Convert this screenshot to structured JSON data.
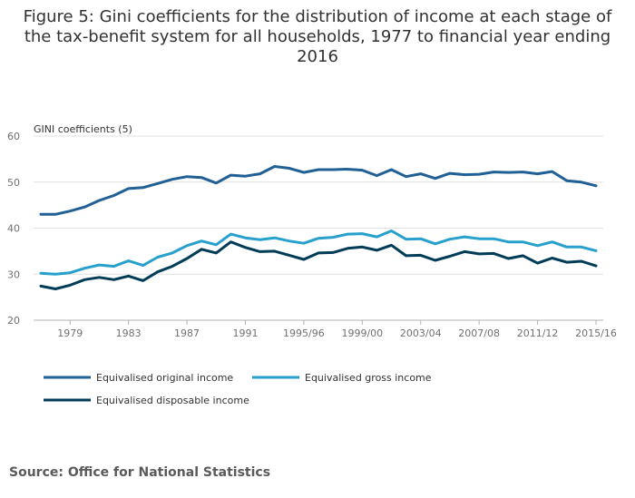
{
  "title": "Figure 5: Gini coefficients for the distribution of income at each stage of the tax-benefit system for all households, 1977 to financial year ending 2016",
  "source": "Source: Office for National Statistics",
  "colors": {
    "original": "#206095",
    "gross": "#27a0cc",
    "disposable": "#003c57",
    "grid": "#e0e0e0",
    "axis": "#b3b3b3"
  },
  "chart_data": {
    "type": "line",
    "title": "",
    "xlabel": "",
    "ylabel": "GINI coefficients (5)",
    "ylim": [
      20,
      60
    ],
    "yticks": [
      20,
      30,
      40,
      50,
      60
    ],
    "grid": true,
    "legend_position": "bottom",
    "x": [
      "1977",
      "1978",
      "1979",
      "1980",
      "1981",
      "1982",
      "1983",
      "1984",
      "1985",
      "1986",
      "1987",
      "1988",
      "1989",
      "1990",
      "1991",
      "1992",
      "1993",
      "1994",
      "1995/96",
      "1996/97",
      "1997/98",
      "1998/99",
      "1999/00",
      "2000/01",
      "2001/02",
      "2002/03",
      "2003/04",
      "2004/05",
      "2005/06",
      "2006/07",
      "2007/08",
      "2008/09",
      "2009/10",
      "2010/11",
      "2011/12",
      "2012/13",
      "2013/14",
      "2014/15",
      "2015/16"
    ],
    "xtick_labels": [
      "1979",
      "1983",
      "1987",
      "1991",
      "1995/96",
      "1999/00",
      "2003/04",
      "2007/08",
      "2011/12",
      "2015/16"
    ],
    "series": [
      {
        "name": "Equivalised original income",
        "color": "#206095",
        "values": [
          43,
          43,
          43.7,
          44.6,
          46,
          47.1,
          48.6,
          48.8,
          49.7,
          50.6,
          51.2,
          51,
          49.8,
          51.5,
          51.3,
          51.8,
          53.4,
          53,
          52.1,
          52.7,
          52.7,
          52.8,
          52.6,
          51.4,
          52.7,
          51.2,
          51.8,
          50.8,
          51.9,
          51.6,
          51.7,
          52.2,
          52.1,
          52.2,
          51.8,
          52.3,
          50.3,
          50,
          49.2
        ]
      },
      {
        "name": "Equivalised gross income",
        "color": "#27a0cc",
        "values": [
          30.2,
          30,
          30.3,
          31.3,
          32,
          31.7,
          32.9,
          31.9,
          33.7,
          34.6,
          36.2,
          37.2,
          36.4,
          38.7,
          37.9,
          37.5,
          37.9,
          37.2,
          36.7,
          37.8,
          38,
          38.7,
          38.8,
          38.1,
          39.4,
          37.6,
          37.7,
          36.6,
          37.6,
          38.1,
          37.7,
          37.7,
          37,
          37,
          36.2,
          37,
          35.9,
          35.9,
          35.1
        ]
      },
      {
        "name": "Equivalised disposable income",
        "color": "#003c57",
        "values": [
          27.4,
          26.8,
          27.6,
          28.8,
          29.3,
          28.8,
          29.6,
          28.6,
          30.5,
          31.7,
          33.4,
          35.4,
          34.6,
          37,
          35.8,
          34.9,
          35,
          34.1,
          33.2,
          34.6,
          34.7,
          35.6,
          35.9,
          35.2,
          36.3,
          34,
          34.1,
          33,
          33.9,
          34.9,
          34.4,
          34.5,
          33.4,
          34,
          32.4,
          33.5,
          32.6,
          32.8,
          31.8
        ]
      }
    ]
  },
  "legend": [
    {
      "label": "Equivalised original income",
      "color": "#206095"
    },
    {
      "label": "Equivalised gross income",
      "color": "#27a0cc"
    },
    {
      "label": "Equivalised disposable income",
      "color": "#003c57"
    }
  ]
}
